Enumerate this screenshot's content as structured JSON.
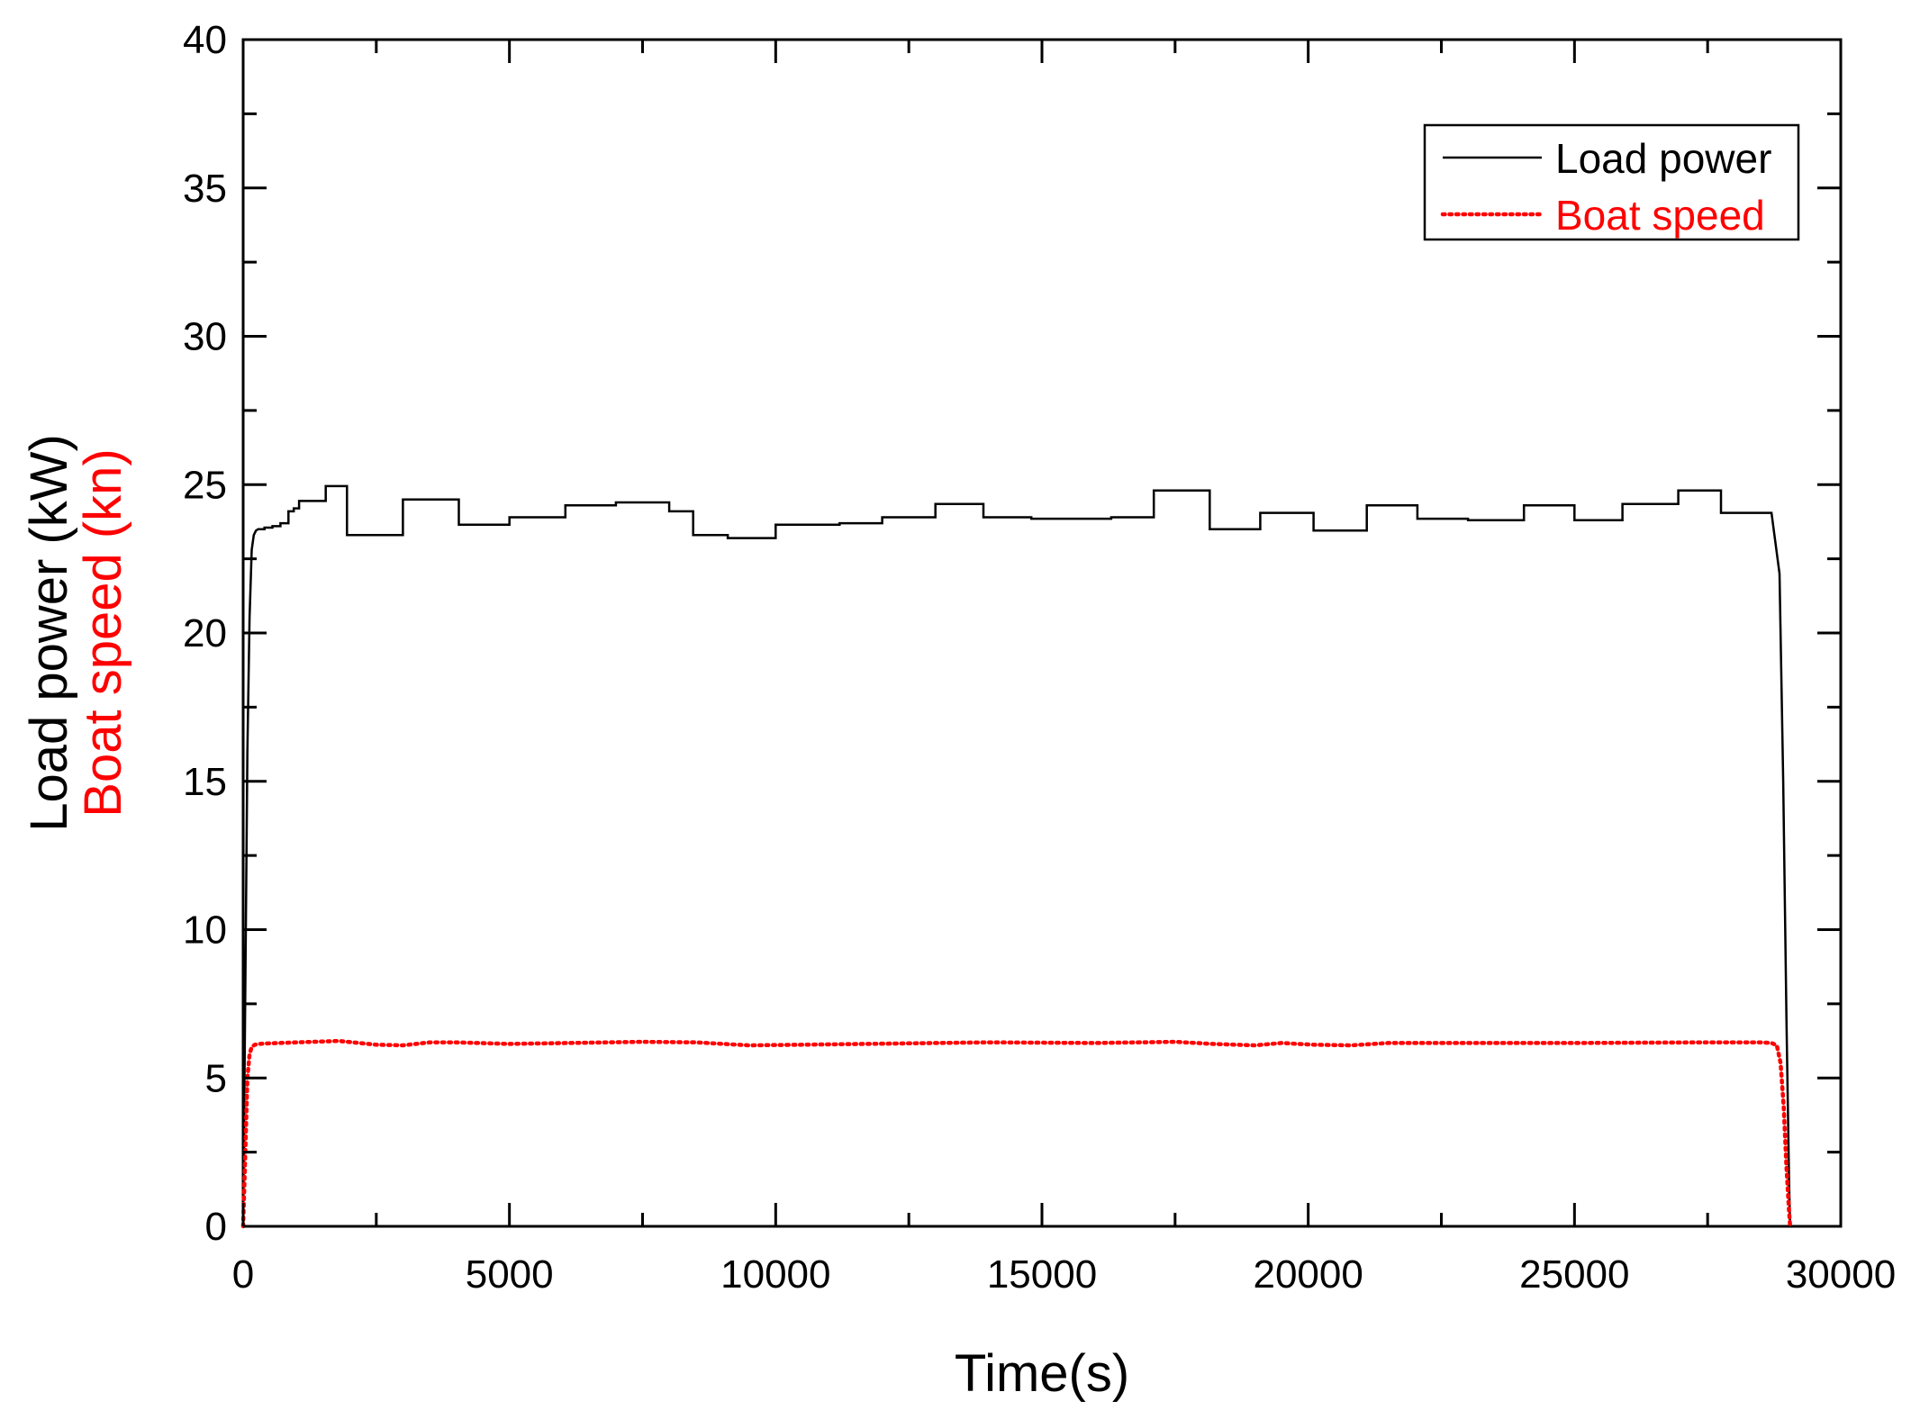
{
  "chart_data": {
    "type": "line",
    "title": "",
    "xlabel": "Time(s)",
    "ylabel_parts": [
      {
        "text": "Load power (kW)",
        "color": "#000000"
      },
      {
        "text": "Boat speed (kn)",
        "color": "#ff0000"
      }
    ],
    "xlim": [
      0,
      30000
    ],
    "ylim": [
      0,
      40
    ],
    "x_ticks": [
      "0",
      "5000",
      "10000",
      "15000",
      "20000",
      "25000",
      "30000"
    ],
    "y_ticks": [
      "0",
      "5",
      "10",
      "15",
      "20",
      "25",
      "30",
      "35",
      "40"
    ],
    "grid": false,
    "legend_position": "top-right",
    "series": [
      {
        "name": "Load power",
        "color": "#000000",
        "style": "solid",
        "x": [
          0,
          40,
          80,
          120,
          160,
          200,
          240,
          280,
          320,
          400,
          400,
          550,
          550,
          700,
          700,
          850,
          850,
          950,
          950,
          1050,
          1050,
          1550,
          1550,
          1950,
          1950,
          3000,
          3000,
          4050,
          4050,
          5000,
          5000,
          6050,
          6050,
          7000,
          7000,
          8000,
          8000,
          8450,
          8450,
          9100,
          9100,
          10000,
          10000,
          11200,
          11200,
          12000,
          12000,
          13000,
          13000,
          13900,
          13900,
          14800,
          14800,
          15500,
          15500,
          16300,
          16300,
          17100,
          17100,
          18150,
          18150,
          19100,
          19100,
          20100,
          20100,
          21100,
          21100,
          22050,
          22050,
          23000,
          23000,
          24050,
          24050,
          25000,
          25000,
          25900,
          25900,
          26950,
          26950,
          27750,
          27750,
          28700,
          28700,
          28850,
          28920,
          28980,
          29030,
          29050
        ],
        "y": [
          0,
          8,
          16,
          20.5,
          22.8,
          23.3,
          23.45,
          23.5,
          23.5,
          23.5,
          23.55,
          23.55,
          23.6,
          23.6,
          23.7,
          23.7,
          24.1,
          24.1,
          24.2,
          24.2,
          24.45,
          24.45,
          24.95,
          24.95,
          23.3,
          23.3,
          24.5,
          24.5,
          23.65,
          23.65,
          23.9,
          23.9,
          24.3,
          24.3,
          24.4,
          24.4,
          24.1,
          24.1,
          23.3,
          23.3,
          23.2,
          23.2,
          23.65,
          23.65,
          23.7,
          23.7,
          23.9,
          23.9,
          24.35,
          24.35,
          23.9,
          23.9,
          23.85,
          23.85,
          23.85,
          23.85,
          23.9,
          23.9,
          24.8,
          24.8,
          23.5,
          23.5,
          24.05,
          24.05,
          23.45,
          23.45,
          24.3,
          24.3,
          23.85,
          23.85,
          23.8,
          23.8,
          24.3,
          24.3,
          23.8,
          23.8,
          24.35,
          24.35,
          24.8,
          24.8,
          24.05,
          24.05,
          24.05,
          22,
          15,
          7,
          1.5,
          0
        ]
      },
      {
        "name": "Boat speed",
        "color": "#ff0000",
        "style": "dotted",
        "x": [
          0,
          40,
          80,
          120,
          160,
          220,
          300,
          400,
          1000,
          1800,
          2500,
          3000,
          3500,
          4000,
          5000,
          7500,
          8500,
          9500,
          10500,
          13000,
          14000,
          16000,
          17500,
          18200,
          19000,
          19500,
          20100,
          20800,
          21500,
          22500,
          25000,
          27500,
          28500,
          28700,
          28800,
          28870,
          28930,
          28980,
          29030,
          29050
        ],
        "y": [
          0,
          2.5,
          5,
          5.8,
          6.05,
          6.12,
          6.15,
          6.16,
          6.2,
          6.25,
          6.12,
          6.1,
          6.2,
          6.2,
          6.15,
          6.22,
          6.2,
          6.1,
          6.12,
          6.18,
          6.2,
          6.18,
          6.22,
          6.15,
          6.1,
          6.18,
          6.12,
          6.1,
          6.18,
          6.18,
          6.18,
          6.2,
          6.2,
          6.18,
          6.1,
          5.5,
          4,
          2,
          0.5,
          0
        ]
      }
    ]
  }
}
